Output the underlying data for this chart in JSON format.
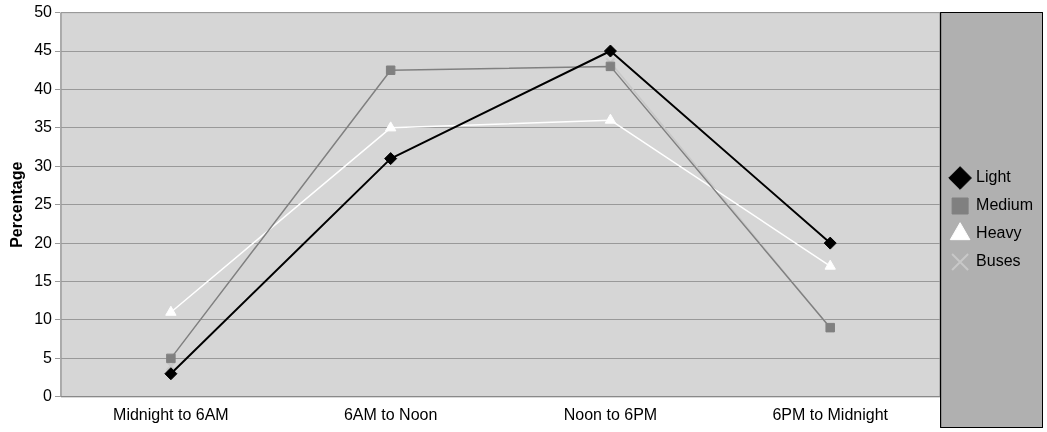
{
  "chart_data": {
    "type": "line",
    "ylabel": "Percentage",
    "categories": [
      "Midnight to 6AM",
      "6AM to Noon",
      "Noon to 6PM",
      "6PM to Midnight"
    ],
    "series": [
      {
        "name": "Light",
        "color": "#000000",
        "marker": "diamond",
        "values": [
          3,
          31,
          45,
          20
        ]
      },
      {
        "name": "Medium",
        "color": "#808080",
        "marker": "square",
        "values": [
          5,
          42.5,
          43,
          9
        ]
      },
      {
        "name": "Heavy",
        "color": "#ffffff",
        "marker": "triangle",
        "values": [
          11,
          35,
          36,
          17
        ]
      },
      {
        "name": "Buses",
        "color": "#c8c8c8",
        "marker": "cross",
        "values": [
          4,
          null,
          43.5,
          9
        ]
      }
    ],
    "ylim": [
      0,
      50
    ],
    "yticks": [
      0,
      5,
      10,
      15,
      20,
      25,
      30,
      35,
      40,
      45,
      50
    ],
    "grid": "y",
    "legend": "right",
    "line_style": "solid"
  }
}
